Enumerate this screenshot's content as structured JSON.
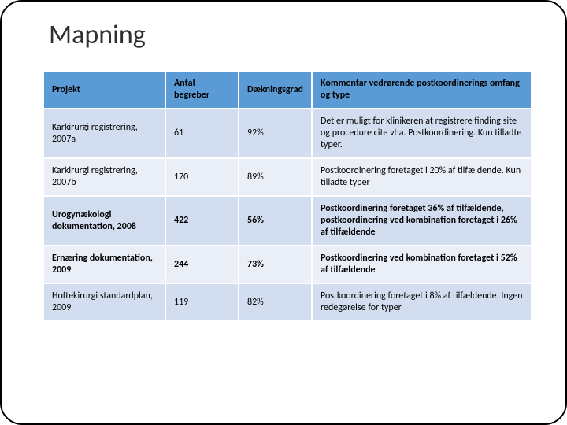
{
  "title": "Mapning",
  "table": {
    "header_bg": "#5b9bd5",
    "band_a_bg": "#d2deef",
    "band_b_bg": "#eaeff7",
    "border_color": "#ffffff",
    "columns": [
      {
        "label": "Projekt",
        "width_pct": 25
      },
      {
        "label": "Antal begreber",
        "width_pct": 15
      },
      {
        "label": "Dækningsgrad",
        "width_pct": 15
      },
      {
        "label": "Kommentar vedrørende postkoordinerings omfang og type",
        "width_pct": 45
      }
    ],
    "rows": [
      {
        "band": "a",
        "bold": false,
        "cells": [
          "Karkirurgi registrering, 2007a",
          "61",
          "92%",
          "Det er muligt for klinikeren at registrere finding site og procedure cite vha. Postkoordinering. Kun tilladte typer."
        ]
      },
      {
        "band": "b",
        "bold": false,
        "cells": [
          "Karkirurgi registrering, 2007b",
          "170",
          "89%",
          "Postkoordinering foretaget i 20% af tilfældende. Kun tilladte typer"
        ]
      },
      {
        "band": "a",
        "bold": true,
        "cells": [
          "Urogynækologi dokumentation, 2008",
          "422",
          "56%",
          "Postkoordinering foretaget 36% af tilfældende, postkoordinering ved kombination foretaget i 26% af tilfældende"
        ]
      },
      {
        "band": "b",
        "bold": true,
        "cells": [
          "Ernæring dokumentation, 2009",
          "244",
          "73%",
          "Postkoordinering ved kombination foretaget i 52% af tilfældende"
        ]
      },
      {
        "band": "a",
        "bold": false,
        "cells": [
          "Hoftekirurgi standardplan, 2009",
          "119",
          "82%",
          "Postkoordinering foretaget i 8% af tilfældende. Ingen redegørelse for typer"
        ]
      }
    ]
  }
}
